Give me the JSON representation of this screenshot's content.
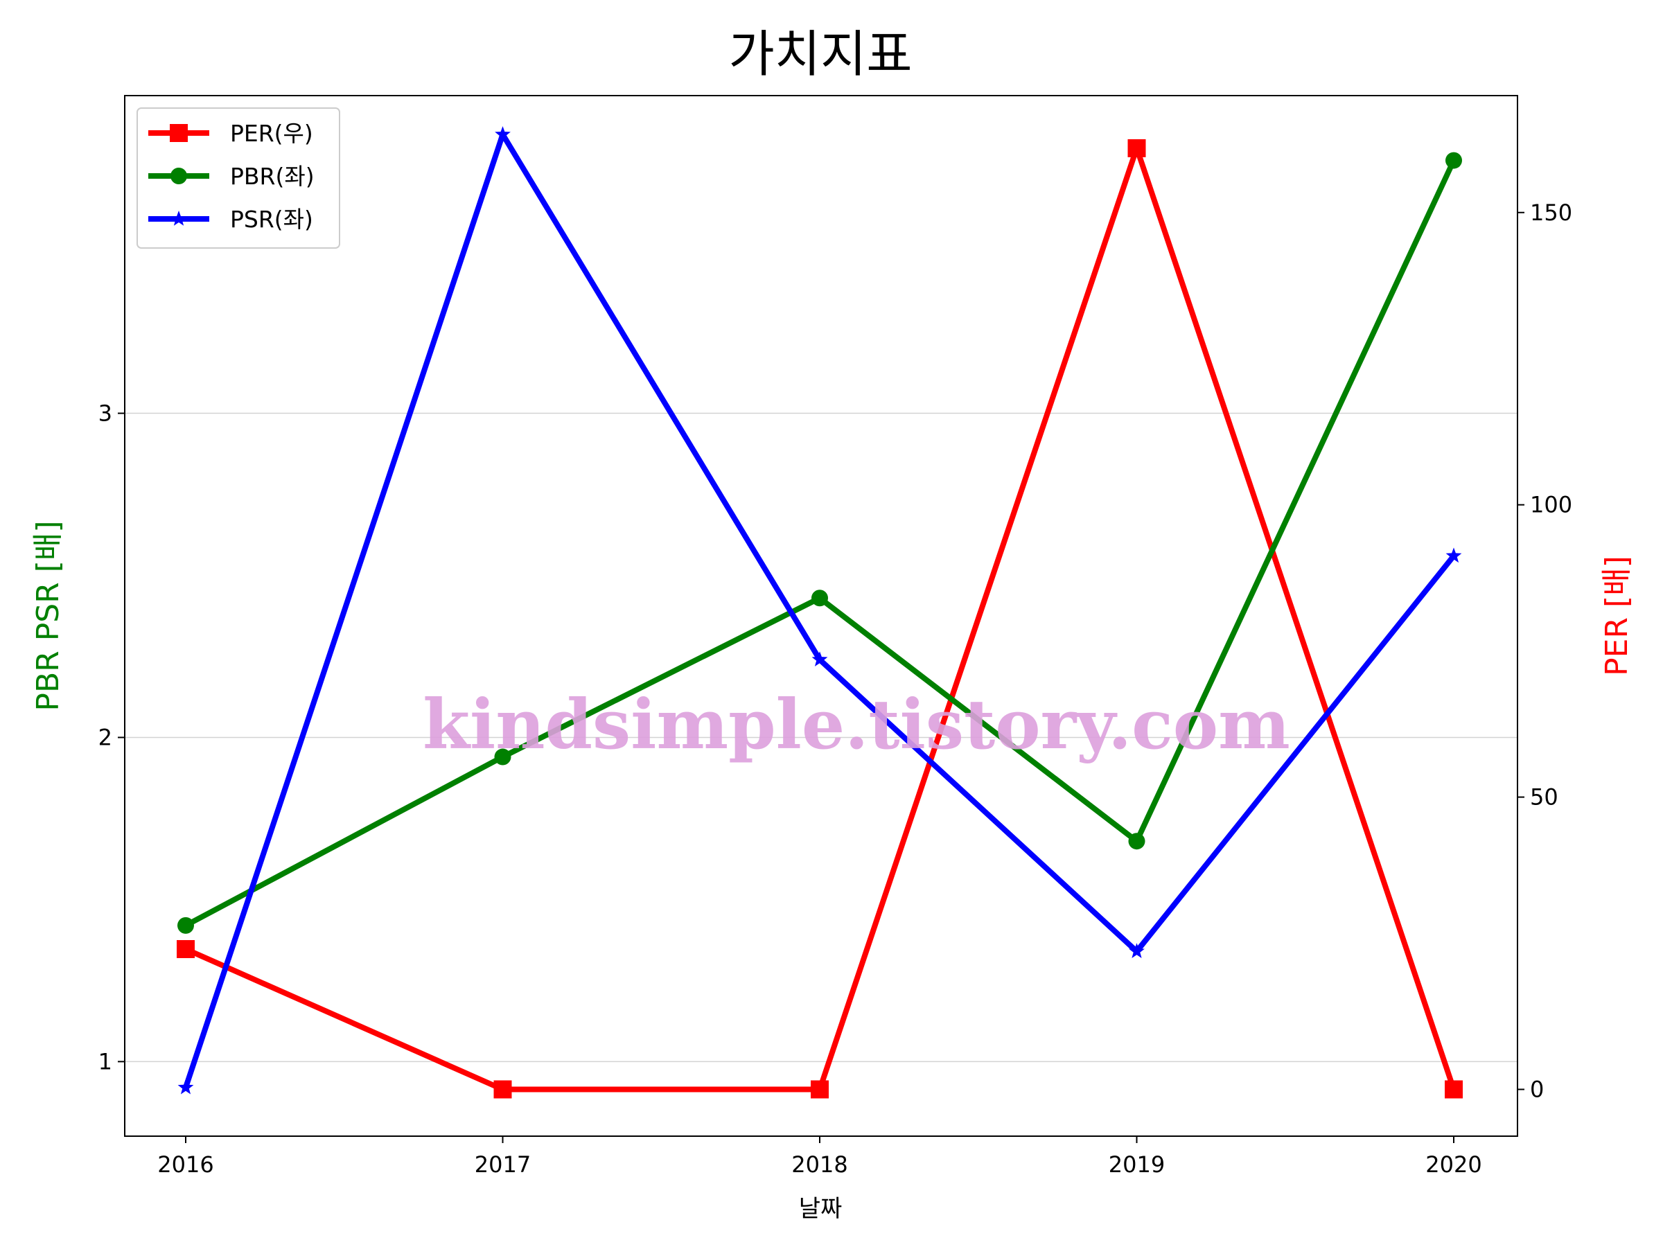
{
  "chart_data": {
    "type": "line",
    "title": "가치지표",
    "xlabel": "날짜",
    "ylabel_left": "PBR PSR [배]",
    "ylabel_right": "PER [배]",
    "categories": [
      "2016",
      "2017",
      "2018",
      "2019",
      "2020"
    ],
    "left_axis": {
      "ylim": [
        0.77,
        3.98
      ],
      "ticks": [
        "1",
        "2",
        "3"
      ],
      "tick_values": [
        1,
        2,
        3
      ]
    },
    "right_axis": {
      "ylim": [
        -8,
        170
      ],
      "ticks": [
        "0",
        "50",
        "100",
        "150"
      ],
      "tick_values": [
        0,
        50,
        100,
        150
      ]
    },
    "grid": "horizontal",
    "legend_position": "top-left",
    "series": [
      {
        "name": "PER(우)",
        "axis": "right",
        "color": "#ff0000",
        "marker": "square",
        "values": [
          24,
          0,
          0,
          161,
          0
        ]
      },
      {
        "name": "PBR(좌)",
        "axis": "left",
        "color": "#008000",
        "marker": "circle",
        "values": [
          1.42,
          1.94,
          2.43,
          1.68,
          3.78
        ]
      },
      {
        "name": "PSR(좌)",
        "axis": "left",
        "color": "#0000ff",
        "marker": "star",
        "values": [
          0.92,
          3.86,
          2.24,
          1.34,
          2.56
        ]
      }
    ],
    "watermark": "kindsimple.tistory.com"
  }
}
